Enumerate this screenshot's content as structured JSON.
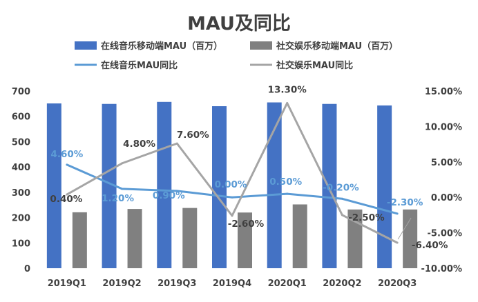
{
  "chart_data": {
    "type": "bar",
    "title": "MAU及同比",
    "categories": [
      "2019Q1",
      "2019Q2",
      "2019Q3",
      "2019Q4",
      "2020Q1",
      "2020Q2",
      "2020Q3"
    ],
    "series": [
      {
        "name": "在线音乐移动端MAU（百万）",
        "type": "bar",
        "axis": "left",
        "color": "#4472C4",
        "values": [
          651,
          649,
          657,
          640,
          655,
          649,
          643
        ]
      },
      {
        "name": "社交娱乐移动端MAU（百万）",
        "type": "bar",
        "axis": "left",
        "color": "#808080",
        "values": [
          221,
          234,
          238,
          220,
          252,
          232,
          232
        ]
      },
      {
        "name": "在线音乐MAU同比",
        "type": "line",
        "axis": "right",
        "color": "#5B9BD5",
        "values": [
          4.6,
          1.2,
          0.9,
          0.0,
          0.5,
          -0.2,
          -2.3
        ],
        "labels": [
          "4.60%",
          "1.20%",
          "0.90%",
          "0.00%",
          "0.50%",
          "-0.20%",
          "-2.30%"
        ]
      },
      {
        "name": "社交娱乐MAU同比",
        "type": "line",
        "axis": "right",
        "color": "#A5A5A5",
        "values": [
          0.4,
          4.8,
          7.6,
          -2.6,
          13.3,
          -2.5,
          -6.4
        ],
        "labels": [
          "0.40%",
          "4.80%",
          "7.60%",
          "-2.60%",
          "13.30%",
          "-2.50%",
          "-6.40%"
        ]
      }
    ],
    "ylim": [
      0,
      700
    ],
    "y_ticks": [
      "0",
      "100",
      "200",
      "300",
      "400",
      "500",
      "600",
      "700"
    ],
    "y2lim": [
      -10,
      15
    ],
    "y2_ticks": [
      "-10.00%",
      "-5.00%",
      "0.00%",
      "5.00%",
      "10.00%",
      "15.00%"
    ],
    "legend_position": "top",
    "grid": false
  }
}
